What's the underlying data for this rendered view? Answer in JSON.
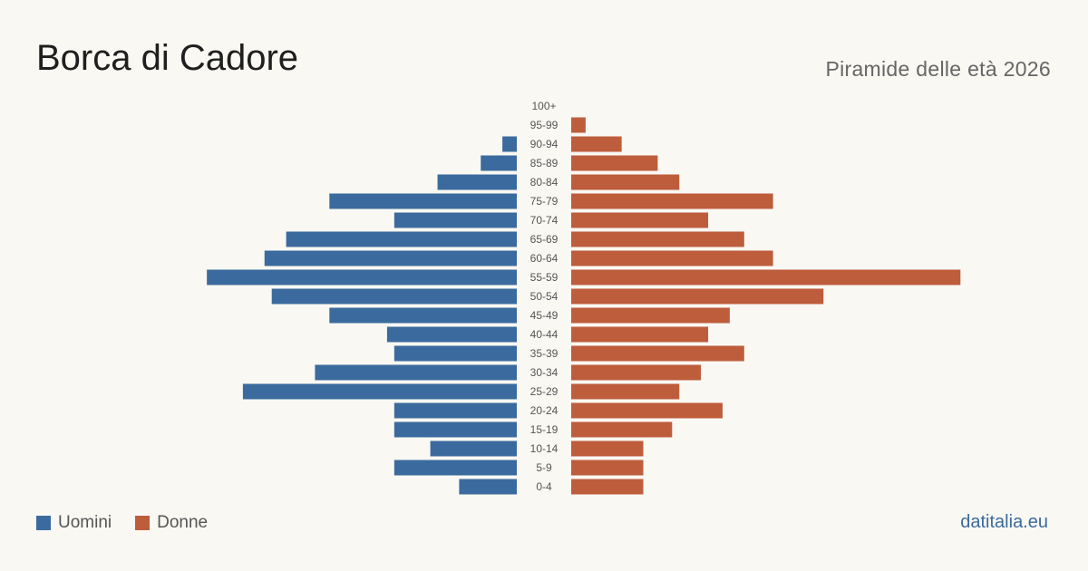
{
  "title": "Borca di Cadore",
  "subtitle": "Piramide delle età 2026",
  "source": "datitalia.eu",
  "colors": {
    "men": "#3b6b9e",
    "women": "#bd5d3c",
    "label": "#555555"
  },
  "chart_data": {
    "type": "bar",
    "orientation": "horizontal-pyramid",
    "title": "Borca di Cadore",
    "subtitle": "Piramide delle età 2026",
    "legend_position": "bottom-left",
    "grid": false,
    "categories": [
      "100+",
      "95-99",
      "90-94",
      "85-89",
      "80-84",
      "75-79",
      "70-74",
      "65-69",
      "60-64",
      "55-59",
      "50-54",
      "45-49",
      "40-44",
      "35-39",
      "30-34",
      "25-29",
      "20-24",
      "15-19",
      "10-14",
      "5-9",
      "0-4"
    ],
    "series": [
      {
        "name": "Uomini",
        "side": "left",
        "values": [
          0,
          0,
          2,
          5,
          11,
          26,
          17,
          32,
          35,
          43,
          34,
          26,
          18,
          17,
          28,
          38,
          17,
          17,
          12,
          17,
          8
        ]
      },
      {
        "name": "Donne",
        "side": "right",
        "values": [
          0,
          2,
          7,
          12,
          15,
          28,
          19,
          24,
          28,
          54,
          35,
          22,
          19,
          24,
          18,
          15,
          21,
          14,
          10,
          10,
          10
        ]
      }
    ]
  }
}
